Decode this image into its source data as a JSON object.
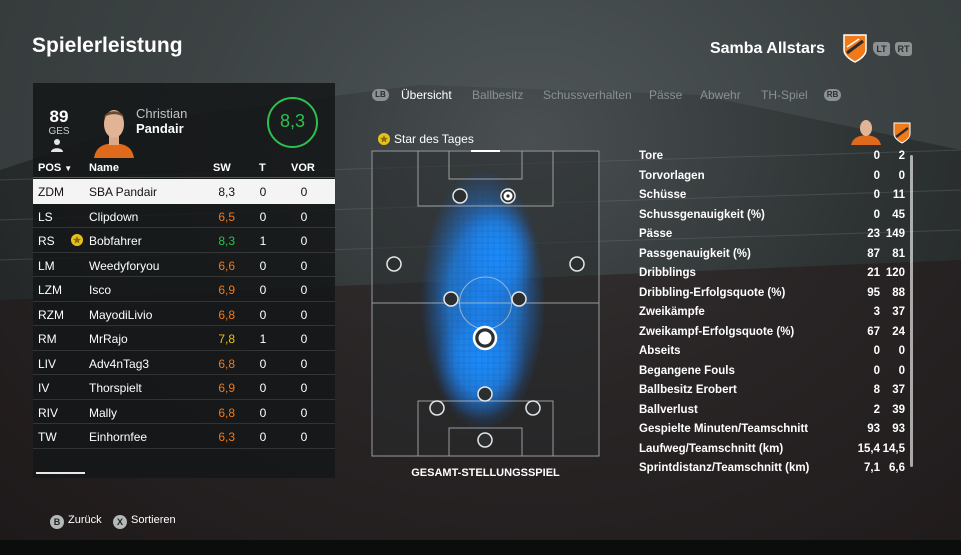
{
  "header": {
    "title": "Spielerleistung",
    "team_name": "Samba Allstars",
    "lt_label": "LT",
    "rt_label": "RT",
    "club_color": "#f07a1a"
  },
  "player": {
    "overall": "89",
    "overall_label": "GES",
    "first_name": "Christian",
    "last_name": "Pandair",
    "rating": "8,3",
    "rating_color": "#2cc04f"
  },
  "table": {
    "headers": {
      "pos": "POS",
      "name": "Name",
      "sw": "SW",
      "t": "T",
      "vor": "VOR"
    },
    "rows": [
      {
        "pos": "ZDM",
        "name": "SBA Pandair",
        "sw": "8,3",
        "t": "0",
        "vor": "0",
        "sw_color": "#111111",
        "selected": true,
        "star": false
      },
      {
        "pos": "LS",
        "name": "Clipdown",
        "sw": "6,5",
        "t": "0",
        "vor": "0",
        "sw_color": "#f07a1a",
        "selected": false,
        "star": false
      },
      {
        "pos": "RS",
        "name": "Bobfahrer",
        "sw": "8,3",
        "t": "1",
        "vor": "0",
        "sw_color": "#2cc04f",
        "selected": false,
        "star": true
      },
      {
        "pos": "LM",
        "name": "Weedyforyou",
        "sw": "6,6",
        "t": "0",
        "vor": "0",
        "sw_color": "#f07a1a",
        "selected": false,
        "star": false
      },
      {
        "pos": "LZM",
        "name": "Isco",
        "sw": "6,9",
        "t": "0",
        "vor": "0",
        "sw_color": "#f07a1a",
        "selected": false,
        "star": false
      },
      {
        "pos": "RZM",
        "name": "MayodiLivio",
        "sw": "6,8",
        "t": "0",
        "vor": "0",
        "sw_color": "#f07a1a",
        "selected": false,
        "star": false
      },
      {
        "pos": "RM",
        "name": "MrRajo",
        "sw": "7,8",
        "t": "1",
        "vor": "0",
        "sw_color": "#e8c21c",
        "selected": false,
        "star": false
      },
      {
        "pos": "LIV",
        "name": "Adv4nTag3",
        "sw": "6,8",
        "t": "0",
        "vor": "0",
        "sw_color": "#f07a1a",
        "selected": false,
        "star": false
      },
      {
        "pos": "IV",
        "name": "Thorspielt",
        "sw": "6,9",
        "t": "0",
        "vor": "0",
        "sw_color": "#f07a1a",
        "selected": false,
        "star": false
      },
      {
        "pos": "RIV",
        "name": "Mally",
        "sw": "6,8",
        "t": "0",
        "vor": "0",
        "sw_color": "#f07a1a",
        "selected": false,
        "star": false
      },
      {
        "pos": "TW",
        "name": "Einhornfee",
        "sw": "6,3",
        "t": "0",
        "vor": "0",
        "sw_color": "#f07a1a",
        "selected": false,
        "star": false
      }
    ]
  },
  "tabs": {
    "lb_label": "LB",
    "rb_label": "RB",
    "items": [
      "Übersicht",
      "Ballbesitz",
      "Schussverhalten",
      "Pässe",
      "Abwehr",
      "TH-Spiel"
    ]
  },
  "pitch": {
    "star_label": "Star des Tages",
    "caption": "GESAMT-STELLUNGSSPIEL"
  },
  "stats": [
    {
      "label": "Tore",
      "a": "0",
      "b": "2"
    },
    {
      "label": "Torvorlagen",
      "a": "0",
      "b": "0"
    },
    {
      "label": "Schüsse",
      "a": "0",
      "b": "11"
    },
    {
      "label": "Schussgenauigkeit (%)",
      "a": "0",
      "b": "45"
    },
    {
      "label": "Pässe",
      "a": "23",
      "b": "149"
    },
    {
      "label": "Passgenauigkeit (%)",
      "a": "87",
      "b": "81"
    },
    {
      "label": "Dribblings",
      "a": "21",
      "b": "120"
    },
    {
      "label": "Dribbling-Erfolgsquote (%)",
      "a": "95",
      "b": "88"
    },
    {
      "label": "Zweikämpfe",
      "a": "3",
      "b": "37"
    },
    {
      "label": "Zweikampf-Erfolgsquote (%)",
      "a": "67",
      "b": "24"
    },
    {
      "label": "Abseits",
      "a": "0",
      "b": "0"
    },
    {
      "label": "Begangene Fouls",
      "a": "0",
      "b": "0"
    },
    {
      "label": "Ballbesitz Erobert",
      "a": "8",
      "b": "37"
    },
    {
      "label": "Ballverlust",
      "a": "2",
      "b": "39"
    },
    {
      "label": "Gespielte Minuten/Teamschnitt",
      "a": "93",
      "b": "93"
    },
    {
      "label": "Laufweg/Teamschnitt (km)",
      "a": "15,4",
      "b": "14,5"
    },
    {
      "label": "Sprintdistanz/Teamschnitt (km)",
      "a": "7,1",
      "b": "6,6"
    }
  ],
  "footer": {
    "back_key": "B",
    "back_label": "Zurück",
    "sort_key": "X",
    "sort_label": "Sortieren"
  }
}
